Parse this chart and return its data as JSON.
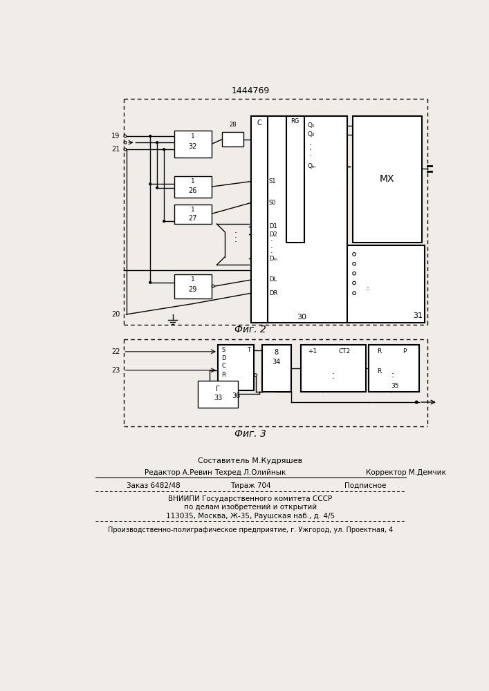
{
  "title": "1444769",
  "fig2_label": "Фиг. 2",
  "fig3_label": "Фиг. 3",
  "footer": {
    "line0": "Составитель М.Кудряшев",
    "line1_l": "Редактор А.Ревин",
    "line1_m": "Техред Л.Олийнык",
    "line1_r": "Корректор М.Демчик",
    "line2_l": "Заказ 6482/48",
    "line2_m": "Тираж 704",
    "line2_r": "Подписное",
    "line3": "ВНИИПИ Государственного комитета СССР",
    "line4": "по делам изобретений и открытий",
    "line5": "113035, Москва, Ж-35, Раушская наб., д. 4/5",
    "line6": "Производственно-полиграфическое предприятие, г. Ужгород, ул. Проектная, 4"
  },
  "bg_color": "#f0ede8"
}
